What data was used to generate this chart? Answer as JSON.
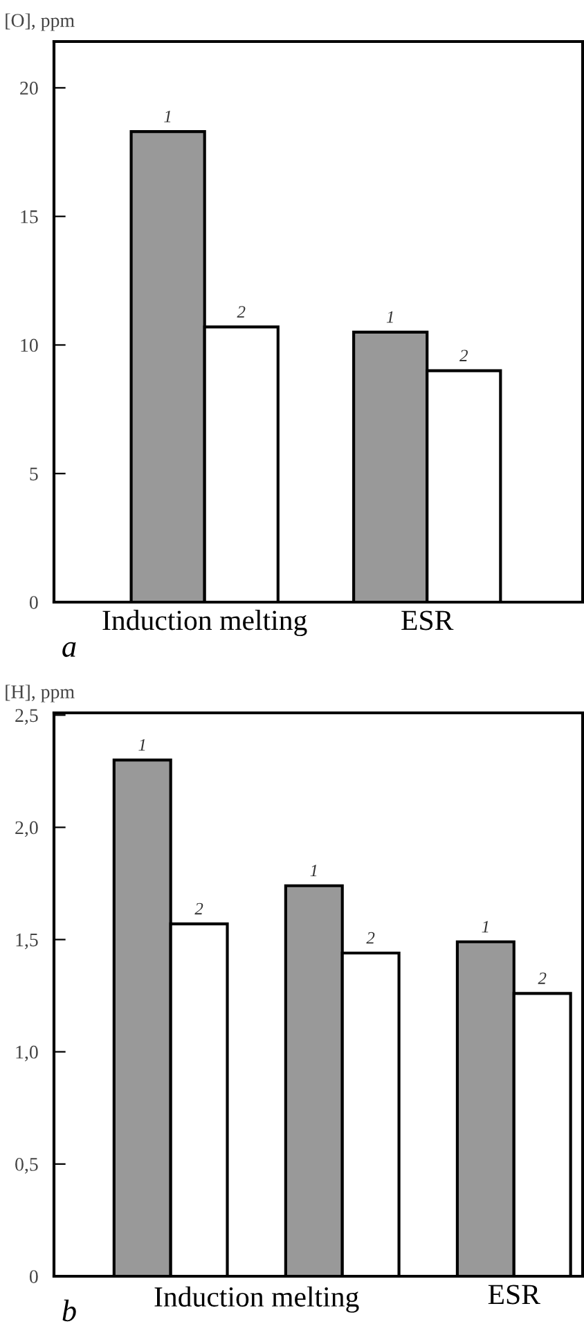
{
  "chart_data": [
    {
      "type": "bar",
      "ylabel": "[O], ppm",
      "categories": [
        "Induction melting",
        "ESR"
      ],
      "series": [
        {
          "name": "1",
          "color": "#999999",
          "values": [
            18.3,
            10.5
          ]
        },
        {
          "name": "2",
          "color": "#ffffff",
          "values": [
            10.7,
            9.0
          ]
        }
      ],
      "ylim": [
        0,
        21.8
      ],
      "yticks": [
        0,
        5,
        10,
        15,
        20
      ],
      "grid": false,
      "legend": false,
      "annotations": [
        "a"
      ]
    },
    {
      "type": "bar",
      "ylabel": "[H], ppm",
      "categories": [
        null,
        null,
        "ESR"
      ],
      "series": [
        {
          "name": "1",
          "color": "#999999",
          "values": [
            2.3,
            1.74,
            1.49
          ]
        },
        {
          "name": "2",
          "color": "#ffffff",
          "values": [
            1.57,
            1.44,
            1.26
          ]
        }
      ],
      "ylim": [
        0,
        2.51
      ],
      "yticks": [
        0,
        {
          "value": 0.5,
          "label": "0,5"
        },
        {
          "value": 1.0,
          "label": "1,0"
        },
        {
          "value": 1.5,
          "label": "1,5"
        },
        {
          "value": 2.0,
          "label": "2,0"
        },
        {
          "value": 2.5,
          "label": "2,5"
        }
      ],
      "grid": false,
      "legend": false,
      "annotations": [
        "b",
        "Induction melting"
      ]
    }
  ]
}
